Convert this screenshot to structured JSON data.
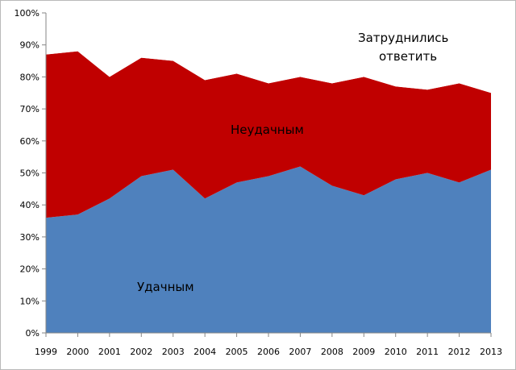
{
  "chart_data": {
    "type": "area",
    "stacked": true,
    "title": "",
    "xlabel": "",
    "ylabel": "",
    "x": [
      "1999",
      "2000",
      "2001",
      "2002",
      "2003",
      "2004",
      "2005",
      "2006",
      "2007",
      "2008",
      "2009",
      "2010",
      "2011",
      "2012",
      "2013"
    ],
    "ylim": [
      0,
      100
    ],
    "yticks": [
      "0%",
      "10%",
      "20%",
      "30%",
      "40%",
      "50%",
      "60%",
      "70%",
      "80%",
      "90%",
      "100%"
    ],
    "grid": false,
    "legend": "none",
    "series": [
      {
        "name": "Удачным",
        "color": "#4f81bd",
        "values": [
          36,
          37,
          42,
          49,
          51,
          42,
          47,
          49,
          52,
          46,
          43,
          48,
          50,
          47,
          51
        ]
      },
      {
        "name": "Неудачным",
        "color": "#c00000",
        "values": [
          51,
          51,
          38,
          37,
          34,
          37,
          34,
          29,
          28,
          32,
          37,
          29,
          26,
          31,
          24
        ]
      },
      {
        "name": "Затруднились ответить",
        "color": "#ffffff",
        "values": [
          13,
          12,
          20,
          14,
          15,
          21,
          19,
          22,
          20,
          22,
          20,
          23,
          24,
          22,
          25
        ]
      }
    ],
    "annotations": {
      "blue_area": "Удачным",
      "red_area": "Неудачным",
      "top_line1": "Затруднились",
      "top_line2": "ответить"
    }
  }
}
